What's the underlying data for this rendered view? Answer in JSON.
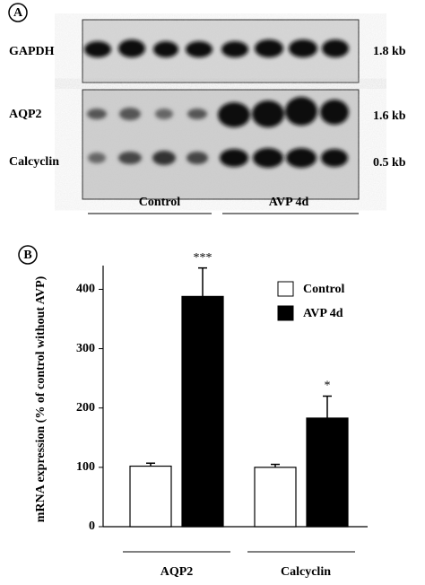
{
  "panel_a": {
    "label": "A",
    "rows": [
      "GAPDH",
      "AQP2",
      "Calcyclin"
    ],
    "sizes": [
      "1.8 kb",
      "1.6 kb",
      "0.5 kb"
    ],
    "groups": [
      "Control",
      "AVP 4d"
    ]
  },
  "chart_data": {
    "type": "bar",
    "panel_label": "B",
    "y_label": "mRNA expression (% of control without AVP)",
    "categories": [
      "AQP2",
      "Calcyclin"
    ],
    "series": [
      {
        "name": "Control",
        "color": "#ffffff",
        "values": [
          102,
          100
        ],
        "errors": [
          5,
          5
        ]
      },
      {
        "name": "AVP 4d",
        "color": "#000000",
        "values": [
          388,
          183
        ],
        "errors": [
          48,
          37
        ],
        "significance": [
          "***",
          "*"
        ]
      }
    ],
    "ylim": [
      0,
      440
    ],
    "yticks": [
      0,
      100,
      200,
      300,
      400
    ],
    "legend": "upper right"
  }
}
